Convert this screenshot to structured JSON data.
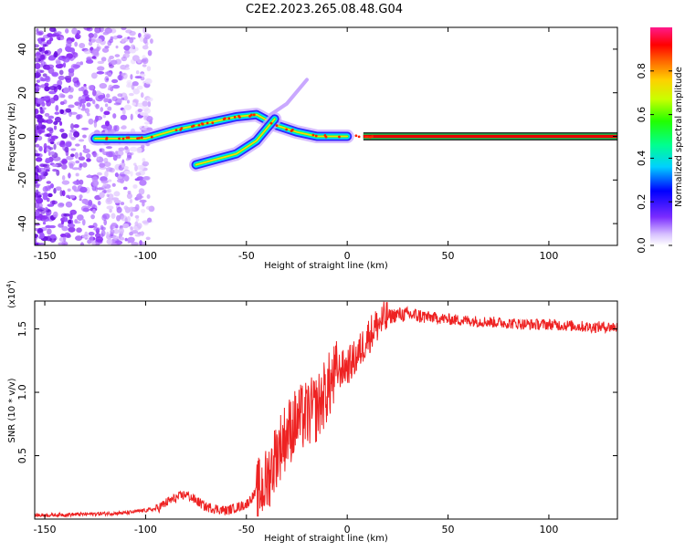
{
  "title": "C2E2.2023.265.08.48.G04",
  "colors": {
    "snr_line": "#ee2222",
    "spectrum_ridge": "#e60000",
    "bar_line": "#2a2a2a"
  },
  "chart_data": [
    {
      "type": "heatmap",
      "name": "spectrogram",
      "xlabel": "Height of straight line (km)",
      "ylabel": "Frequency (Hz)",
      "xlim": [
        -155,
        134
      ],
      "ylim": [
        -50,
        50
      ],
      "xticks": [
        -150,
        -100,
        -50,
        0,
        50,
        100
      ],
      "xtick_labels": [
        "-150",
        "-100",
        "-50",
        "0",
        "50",
        "100"
      ],
      "yticks": [
        -40,
        -20,
        0,
        20,
        40
      ],
      "ytick_labels": [
        "-40",
        "-20",
        "0",
        "20",
        "40"
      ],
      "colorbar": {
        "label": "Normalized spectral amplitude",
        "range": [
          0,
          1
        ],
        "ticks": [
          0.0,
          0.2,
          0.4,
          0.6,
          0.8
        ],
        "tick_labels": [
          "0.0",
          "0.2",
          "0.4",
          "0.6",
          "0.8"
        ]
      },
      "ridges": [
        {
          "name": "main",
          "points": [
            [
              -125,
              -1
            ],
            [
              -100,
              -1
            ],
            [
              -85,
              3
            ],
            [
              -70,
              6
            ],
            [
              -55,
              9
            ],
            [
              -45,
              10
            ],
            [
              -35,
              5
            ],
            [
              -25,
              2
            ],
            [
              -15,
              0
            ],
            [
              0,
              0
            ],
            [
              134,
              0
            ]
          ]
        },
        {
          "name": "upper-branch",
          "points": [
            [
              -38,
              10
            ],
            [
              -30,
              15
            ],
            [
              -20,
              26
            ]
          ]
        },
        {
          "name": "lower-branch",
          "points": [
            [
              -75,
              -13
            ],
            [
              -55,
              -8
            ],
            [
              -45,
              -2
            ],
            [
              -36,
              8
            ]
          ]
        }
      ]
    },
    {
      "type": "line",
      "name": "snr",
      "xlabel": "Height of straight line (km)",
      "ylabel": "SNR (10 * v/v)",
      "scale_label": "(x10",
      "scale_exp": "4",
      "scale_close": ")",
      "xlim": [
        -155,
        134
      ],
      "ylim": [
        0,
        1.72
      ],
      "xticks": [
        -150,
        -100,
        -50,
        0,
        50,
        100
      ],
      "xtick_labels": [
        "-150",
        "-100",
        "-50",
        "0",
        "50",
        "100"
      ],
      "yticks": [
        0.5,
        1.0,
        1.5
      ],
      "ytick_labels": [
        "0.5",
        "1.0",
        "1.5"
      ],
      "series": [
        {
          "name": "SNR",
          "x": [
            -155,
            -130,
            -110,
            -95,
            -88,
            -80,
            -70,
            -60,
            -50,
            -40,
            -35,
            -30,
            -25,
            -20,
            -15,
            -10,
            -5,
            0,
            5,
            10,
            15,
            20,
            25,
            30,
            40,
            50,
            60,
            70,
            80,
            90,
            100,
            110,
            120,
            134
          ],
          "y": [
            0.03,
            0.04,
            0.05,
            0.08,
            0.15,
            0.2,
            0.1,
            0.07,
            0.12,
            0.32,
            0.55,
            0.7,
            0.8,
            0.85,
            0.9,
            1.05,
            1.18,
            1.22,
            1.3,
            1.45,
            1.55,
            1.6,
            1.62,
            1.62,
            1.6,
            1.58,
            1.57,
            1.56,
            1.55,
            1.54,
            1.54,
            1.53,
            1.52,
            1.52
          ]
        }
      ]
    }
  ]
}
